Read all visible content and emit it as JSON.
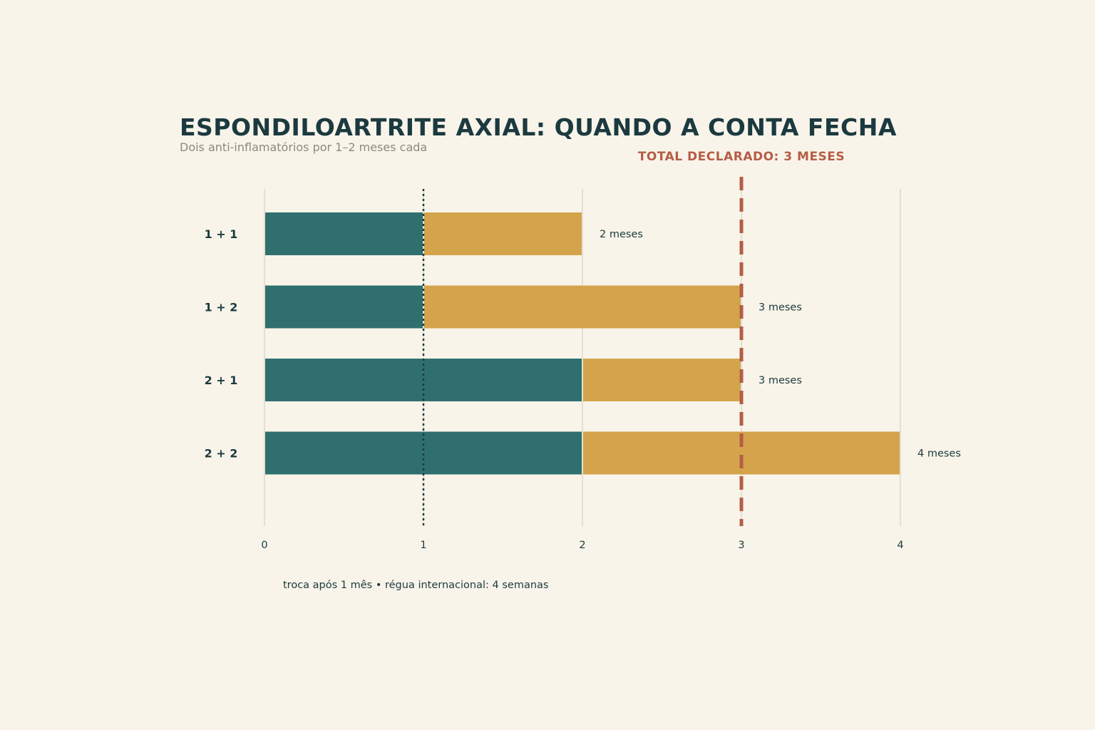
{
  "colors": {
    "background": "#f9f4ea",
    "first_drug": "#2f706e",
    "second_drug": "#d4a44c",
    "reference": "#b55d45",
    "text_dark": "#1b3a3f",
    "text_muted": "#8a8a80",
    "grid": "#cfcabb"
  },
  "chart_data": {
    "type": "bar",
    "orientation": "horizontal",
    "stacked": true,
    "title": "ESPONDILOARTRITE AXIAL: QUANDO A CONTA FECHA",
    "subtitle": "Dois anti-inflamatórios por 1–2 meses cada",
    "categories": [
      "1 + 1",
      "1 + 2",
      "2 + 1",
      "2 + 2"
    ],
    "series": [
      {
        "values": [
          1,
          1,
          2,
          2
        ],
        "color": "#2f706e"
      },
      {
        "values": [
          1,
          2,
          1,
          2
        ],
        "color": "#d4a44c"
      }
    ],
    "totals": [
      2,
      3,
      3,
      4
    ],
    "bar_labels": [
      "2 meses",
      "3 meses",
      "3 meses",
      "4 meses"
    ],
    "xlim": [
      0,
      4
    ],
    "xticks": [
      "0",
      "1",
      "2",
      "3",
      "4"
    ],
    "grid": true,
    "reference_lines": [
      {
        "x": 3,
        "style": "dashed",
        "color": "#b55d45",
        "label": "TOTAL DECLARADO: 3 MESES"
      },
      {
        "x": 1,
        "style": "dotted",
        "color": "#1b3a3f"
      }
    ],
    "footnote": "troca após 1 mês • régua internacional: 4 semanas"
  }
}
